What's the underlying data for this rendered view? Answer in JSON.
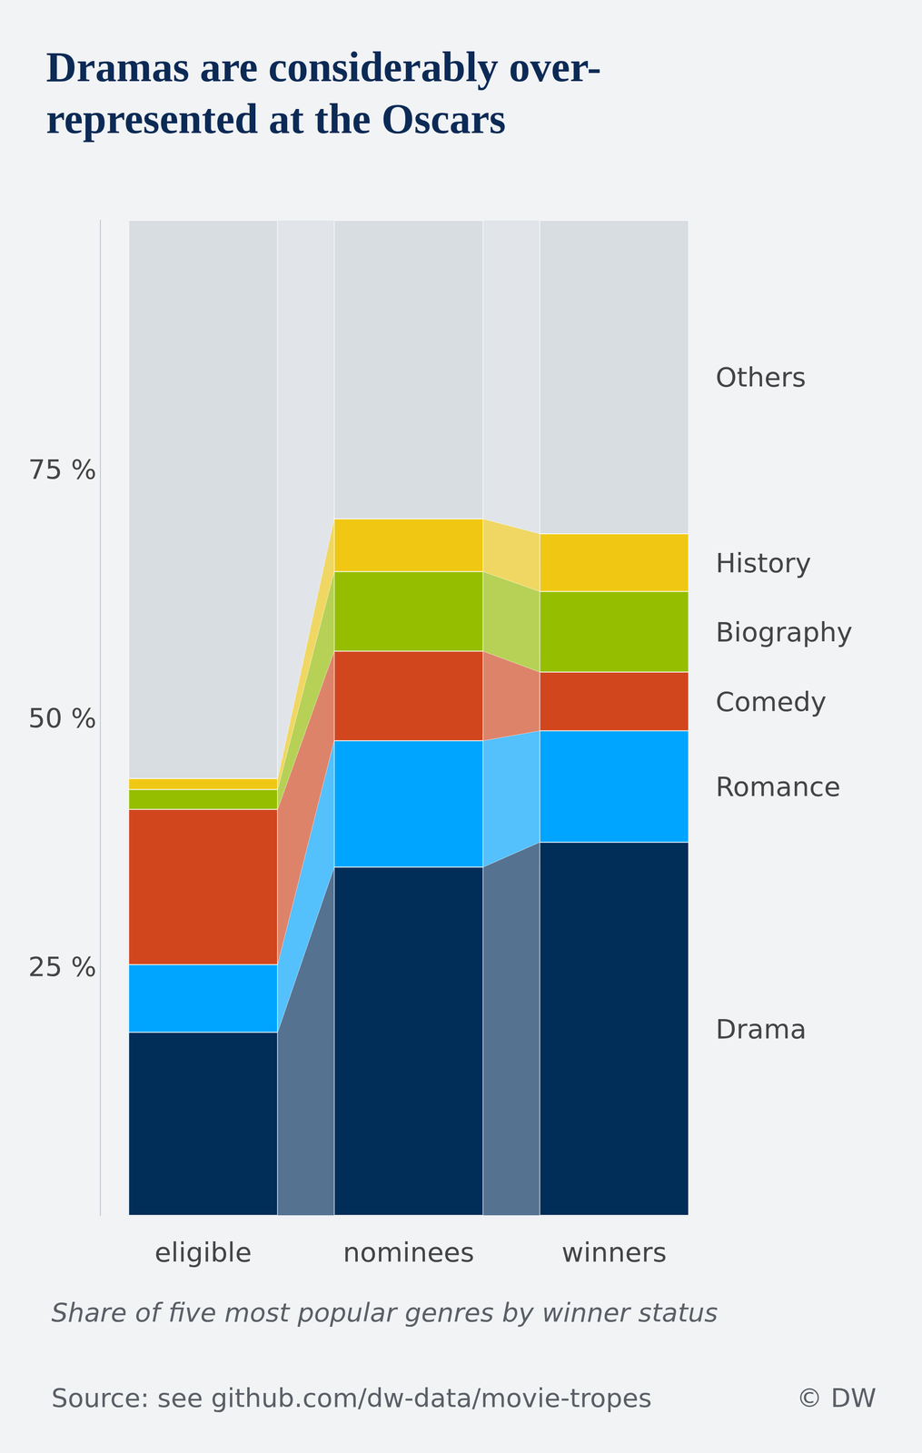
{
  "chart_data": {
    "type": "bar",
    "title": "Dramas are considerably over-\nrepresented at the Oscars",
    "subtitle": "Share of five most popular genres by winner status",
    "source": "Source: see github.com/dw-data/movie-tropes",
    "credit": "© DW",
    "categories": [
      "eligible",
      "nominees",
      "winners"
    ],
    "series": [
      {
        "name": "Drama",
        "color": "#012d59",
        "values": [
          18.4,
          35.0,
          37.5
        ]
      },
      {
        "name": "Romance",
        "color": "#00a5ff",
        "values": [
          6.8,
          12.7,
          11.2
        ]
      },
      {
        "name": "Comedy",
        "color": "#d2461e",
        "values": [
          15.6,
          9.0,
          5.9
        ]
      },
      {
        "name": "Biography",
        "color": "#96be00",
        "values": [
          2.0,
          8.0,
          8.1
        ]
      },
      {
        "name": "History",
        "color": "#f0c814",
        "values": [
          1.1,
          5.3,
          5.8
        ]
      },
      {
        "name": "Others",
        "color": "#d8dde2",
        "values": [
          56.1,
          30.0,
          31.5
        ]
      }
    ],
    "ylim": [
      0,
      100
    ],
    "yticks": [
      {
        "value": 25,
        "label": "25 %"
      },
      {
        "value": 50,
        "label": "50 %"
      },
      {
        "value": 75,
        "label": "75 %"
      }
    ],
    "stacked": true,
    "grid": false,
    "data_labels": false
  }
}
